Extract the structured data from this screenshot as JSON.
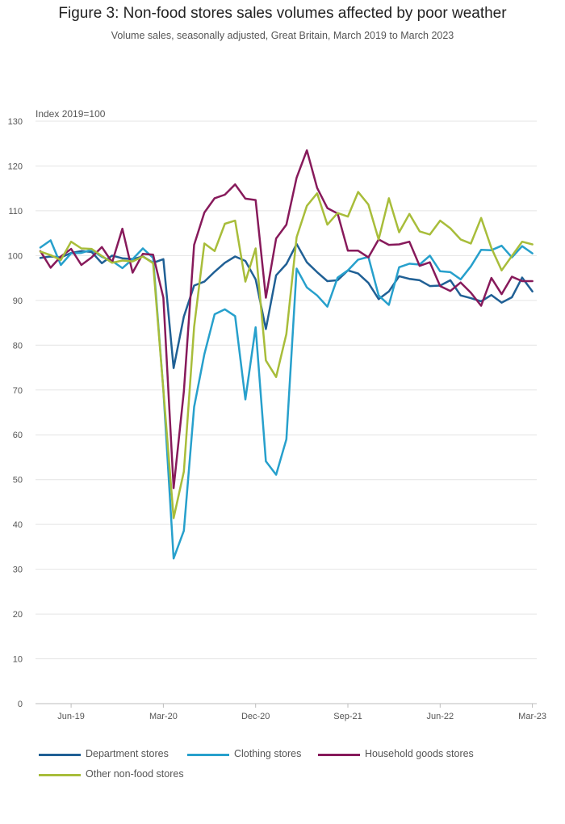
{
  "title": "Figure 3: Non-food stores sales volumes affected by poor weather",
  "subtitle": "Volume sales, seasonally adjusted, Great Britain, March 2019 to March 2023",
  "chart_data": {
    "type": "line",
    "unit_label": "Index 2019=100",
    "ylim": [
      0,
      130
    ],
    "yticks": [
      0,
      10,
      20,
      30,
      40,
      50,
      60,
      70,
      80,
      90,
      100,
      110,
      120,
      130
    ],
    "xticks": [
      "Jun-19",
      "Mar-20",
      "Dec-20",
      "Sep-21",
      "Jun-22",
      "Mar-23"
    ],
    "xtick_index": [
      3,
      12,
      21,
      30,
      39,
      48
    ],
    "grid": true,
    "legend_position": "bottom",
    "x": [
      "Mar-19",
      "Apr-19",
      "May-19",
      "Jun-19",
      "Jul-19",
      "Aug-19",
      "Sep-19",
      "Oct-19",
      "Nov-19",
      "Dec-19",
      "Jan-20",
      "Feb-20",
      "Mar-20",
      "Apr-20",
      "May-20",
      "Jun-20",
      "Jul-20",
      "Aug-20",
      "Sep-20",
      "Oct-20",
      "Nov-20",
      "Dec-20",
      "Jan-21",
      "Feb-21",
      "Mar-21",
      "Apr-21",
      "May-21",
      "Jun-21",
      "Jul-21",
      "Aug-21",
      "Sep-21",
      "Oct-21",
      "Nov-21",
      "Dec-21",
      "Jan-22",
      "Feb-22",
      "Mar-22",
      "Apr-22",
      "May-22",
      "Jun-22",
      "Jul-22",
      "Aug-22",
      "Sep-22",
      "Oct-22",
      "Nov-22",
      "Dec-22",
      "Jan-23",
      "Feb-23",
      "Mar-23"
    ],
    "series": [
      {
        "name": "Department stores",
        "color": "#206095",
        "values": [
          99.5,
          99.8,
          99.6,
          100.6,
          101.0,
          100.8,
          98.3,
          100.0,
          99.4,
          99.2,
          99.8,
          98.4,
          99.2,
          74.9,
          86.4,
          93.3,
          94.2,
          96.4,
          98.4,
          99.8,
          98.8,
          94.7,
          83.6,
          95.6,
          98.1,
          102.6,
          98.5,
          96.3,
          94.3,
          94.5,
          96.7,
          96.0,
          93.9,
          90.3,
          92.0,
          95.4,
          94.8,
          94.5,
          93.2,
          93.3,
          94.5,
          91.1,
          90.5,
          89.8,
          91.2,
          89.5,
          90.7,
          95.1,
          92.0
        ]
      },
      {
        "name": "Clothing stores",
        "color": "#27a0cc",
        "values": [
          101.8,
          103.4,
          97.9,
          100.5,
          100.6,
          101.3,
          99.7,
          98.8,
          97.2,
          99.2,
          101.6,
          99.5,
          70.0,
          32.4,
          38.6,
          66.2,
          78.0,
          86.9,
          88.0,
          86.5,
          67.9,
          84.0,
          54.1,
          51.1,
          59.0,
          97.1,
          92.9,
          91.1,
          88.6,
          95.1,
          96.7,
          99.1,
          99.7,
          91.1,
          89.0,
          97.4,
          98.2,
          98.0,
          100.0,
          96.5,
          96.3,
          94.7,
          97.6,
          101.3,
          101.2,
          102.2,
          99.6,
          102.1,
          100.5
        ]
      },
      {
        "name": "Household goods stores",
        "color": "#871a5b",
        "values": [
          101.0,
          97.3,
          99.8,
          101.5,
          97.9,
          99.6,
          101.9,
          98.5,
          106.0,
          96.2,
          100.4,
          100.2,
          90.6,
          48.1,
          69.7,
          102.4,
          109.6,
          112.8,
          113.6,
          115.9,
          112.7,
          112.4,
          90.6,
          103.8,
          106.9,
          117.4,
          123.5,
          115.1,
          110.6,
          109.4,
          101.1,
          101.1,
          99.6,
          103.6,
          102.4,
          102.5,
          103.1,
          97.7,
          98.5,
          93.2,
          92.1,
          94.0,
          91.7,
          88.8,
          95.0,
          91.4,
          95.3,
          94.3,
          94.3
        ]
      },
      {
        "name": "Other non-food stores",
        "color": "#a8bd3a",
        "values": [
          100.9,
          100.1,
          99.0,
          103.1,
          101.6,
          101.5,
          99.9,
          98.4,
          98.9,
          98.7,
          99.8,
          98.3,
          70.0,
          41.4,
          51.8,
          84.1,
          102.7,
          101.0,
          107.1,
          107.8,
          94.2,
          101.6,
          76.6,
          72.9,
          82.5,
          104.1,
          111.1,
          113.9,
          106.9,
          109.5,
          108.7,
          114.2,
          111.4,
          103.6,
          112.8,
          105.2,
          109.3,
          105.4,
          104.7,
          107.8,
          106.1,
          103.6,
          102.7,
          108.4,
          101.7,
          96.7,
          99.9,
          103.1,
          102.5
        ]
      }
    ]
  }
}
